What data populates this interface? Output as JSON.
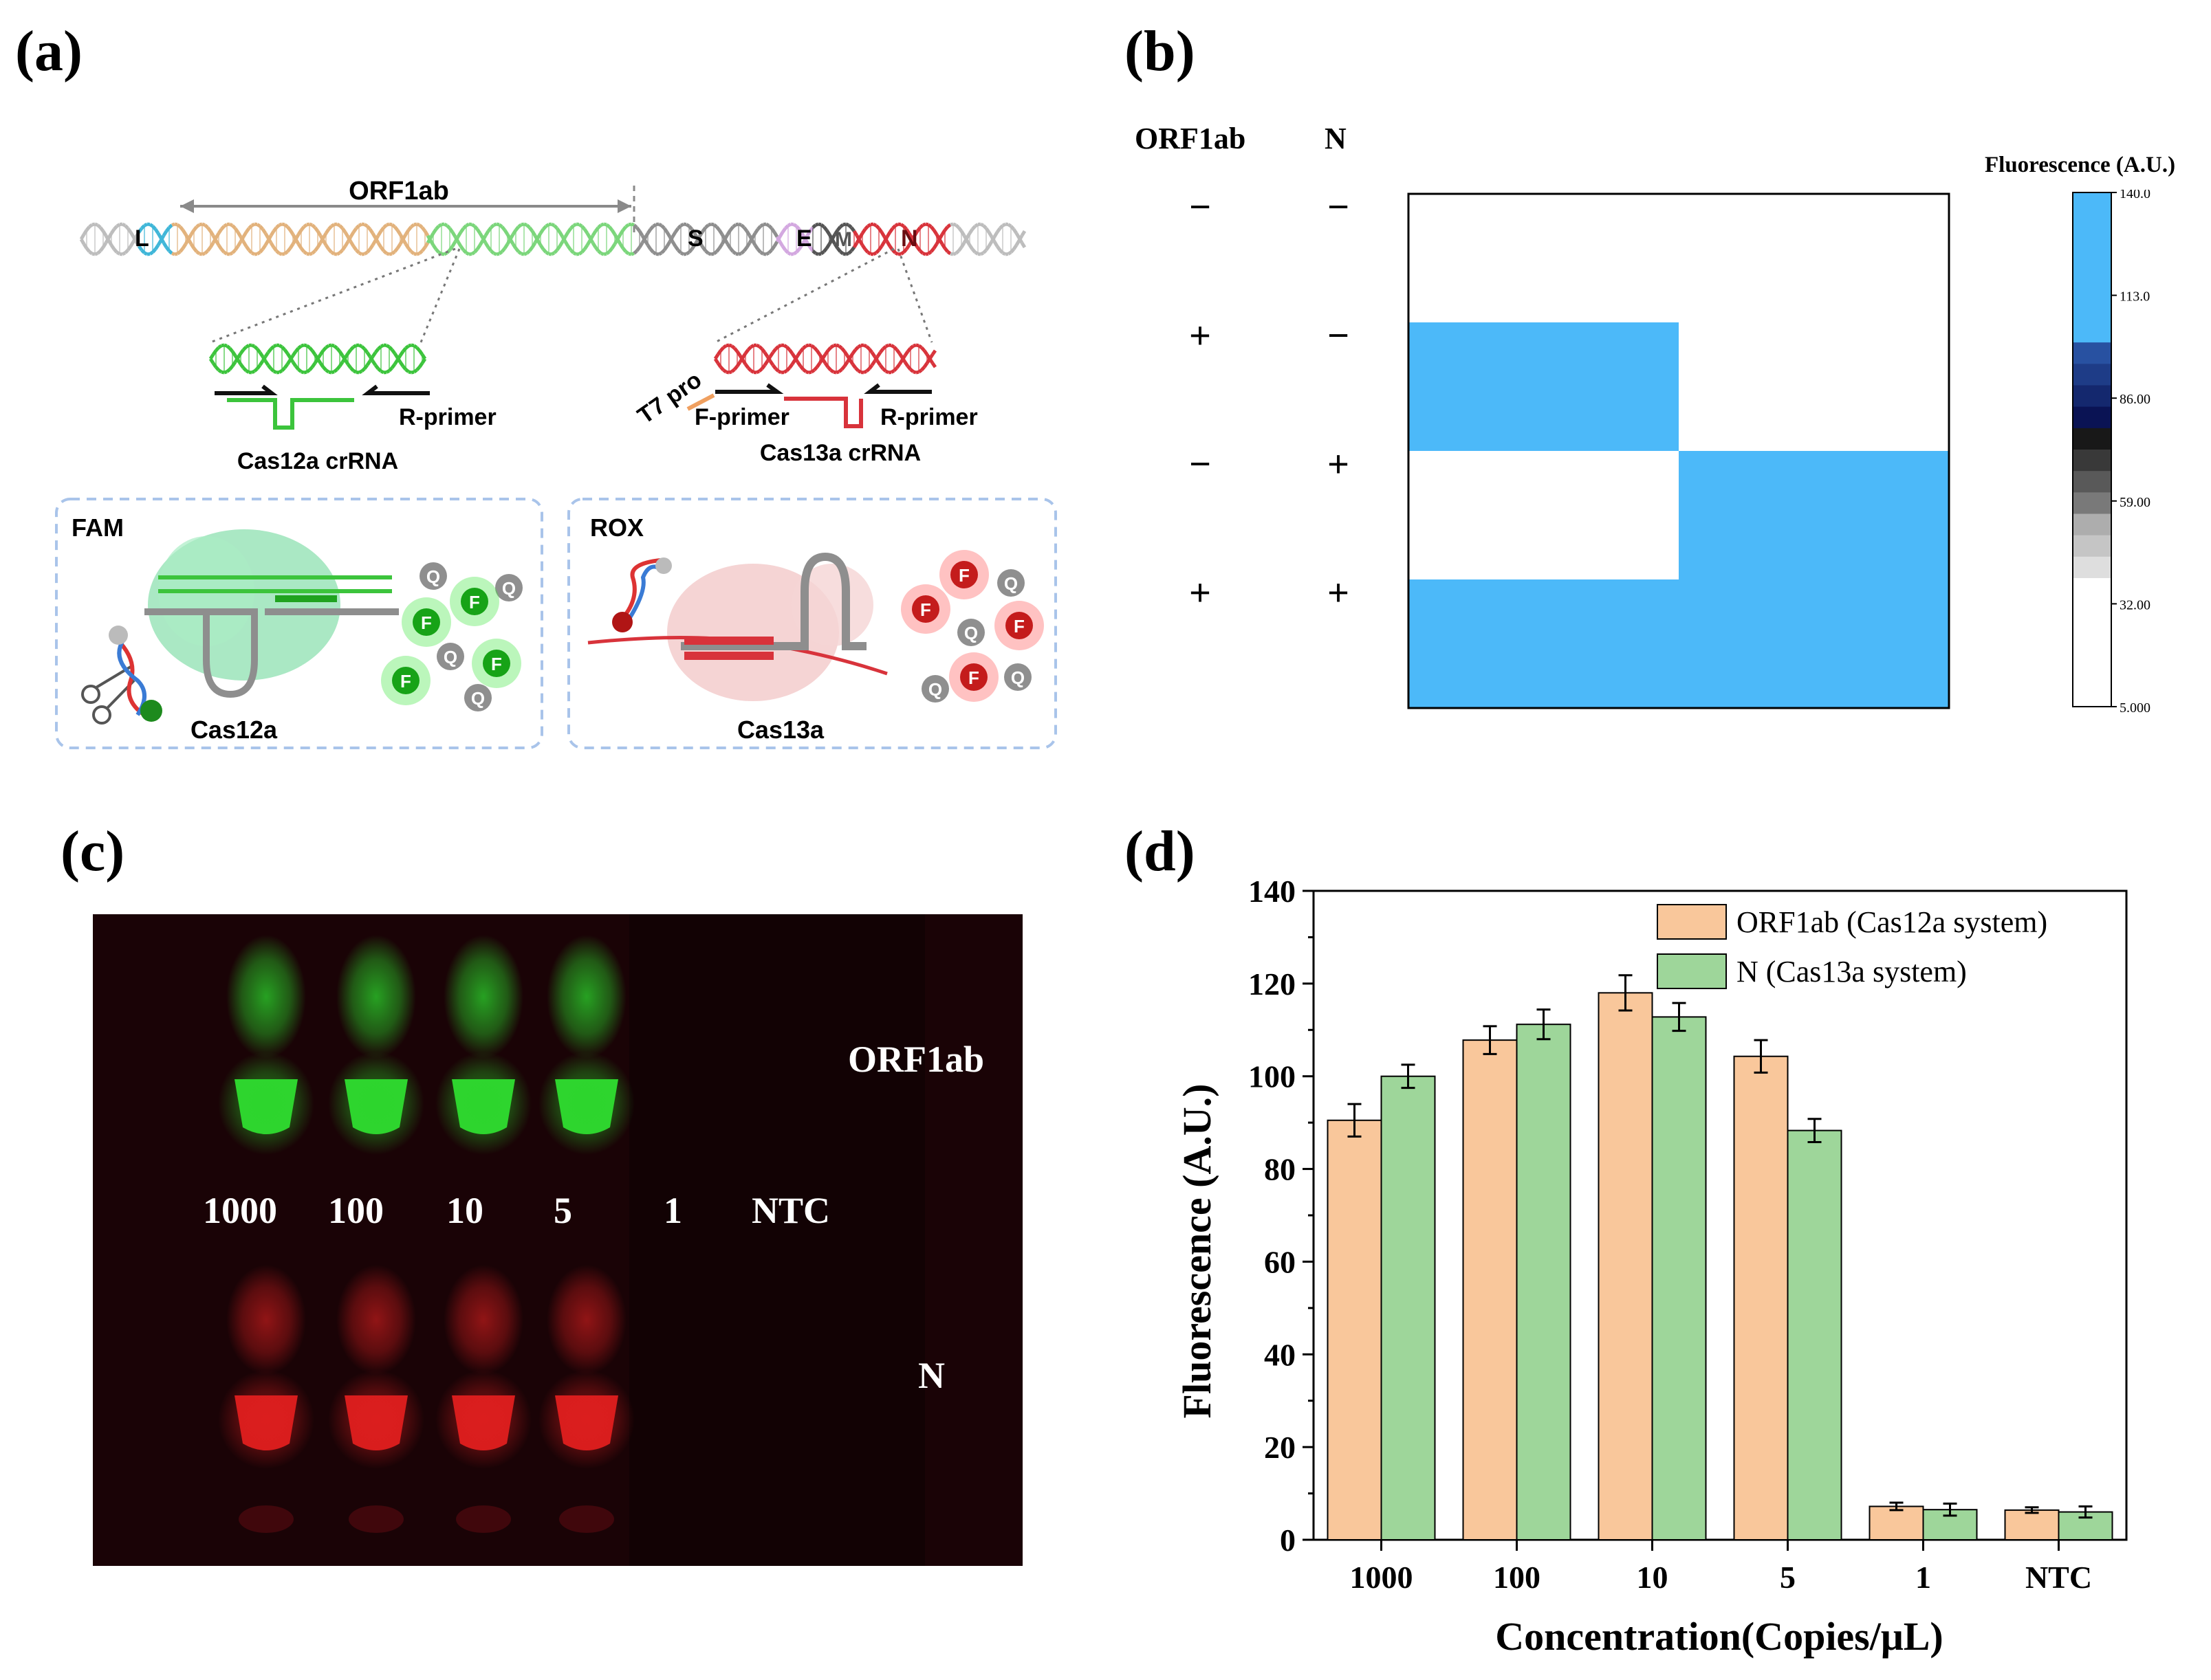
{
  "panels": {
    "a": "(a)",
    "b": "(b)",
    "c": "(c)",
    "d": "(d)"
  },
  "schematic": {
    "gene_span_label": "ORF1ab",
    "gene_markers": [
      "L",
      "S",
      "E",
      "M",
      "N"
    ],
    "cas12": {
      "primer_label": "R-primer",
      "crrna_label": "Cas12a crRNA",
      "box_title": "FAM",
      "enzyme_label": "Cas12a",
      "reporter_f": "F",
      "reporter_q": "Q"
    },
    "cas13": {
      "promoter_label": "T7 pro",
      "f_primer_label": "F-primer",
      "r_primer_label": "R-primer",
      "crrna_label": "Cas13a crRNA",
      "box_title": "ROX",
      "enzyme_label": "Cas13a",
      "reporter_f": "F",
      "reporter_q": "Q"
    },
    "colors": {
      "green": "#3cc43c",
      "red": "#d8333b",
      "tan": "#e2b27c",
      "gray": "#8e8e8e"
    }
  },
  "heatmap": {
    "col_headers": [
      "ORF1ab",
      "N"
    ],
    "rows": [
      {
        "orf1ab": "−",
        "n": "−",
        "cells": [
          5,
          5
        ]
      },
      {
        "orf1ab": "+",
        "n": "−",
        "cells": [
          140,
          5
        ]
      },
      {
        "orf1ab": "−",
        "n": "+",
        "cells": [
          5,
          140
        ]
      },
      {
        "orf1ab": "+",
        "n": "+",
        "cells": [
          140,
          140
        ]
      }
    ],
    "colorbar_title": "Fluorescence (A.U.)",
    "colorbar_ticks": [
      "140.0",
      "113.0",
      "86.00",
      "59.00",
      "32.00",
      "5.000"
    ],
    "high_color": "#4cb9f9",
    "low_color": "#ffffff"
  },
  "gel": {
    "lane_labels": [
      "1000",
      "100",
      "10",
      "5",
      "1",
      "NTC"
    ],
    "row_labels": [
      "ORF1ab",
      "N"
    ],
    "green_glow": "#2bd52b",
    "red_glow": "#e02020"
  },
  "chart_data": {
    "type": "bar",
    "title": "",
    "xlabel": "Concentration(Copies/μL)",
    "ylabel": "Fluorescence (A.U.)",
    "ylim": [
      0,
      140
    ],
    "yticks": [
      0,
      20,
      40,
      60,
      80,
      100,
      120,
      140
    ],
    "categories": [
      "1000",
      "100",
      "10",
      "5",
      "1",
      "NTC"
    ],
    "series": [
      {
        "name": "ORF1ab (Cas12a system)",
        "color": "#f9c79b",
        "values": [
          90.5,
          107.8,
          118.0,
          104.3,
          7.2,
          6.4
        ],
        "errors": [
          3.5,
          3.0,
          3.8,
          3.5,
          0.8,
          0.6
        ]
      },
      {
        "name": "N (Cas13a system)",
        "color": "#9ed69a",
        "values": [
          100.0,
          111.2,
          112.8,
          88.3,
          6.5,
          6.0
        ],
        "errors": [
          2.5,
          3.2,
          3.0,
          2.5,
          1.3,
          1.2
        ]
      }
    ],
    "legend_position": "top-right"
  }
}
